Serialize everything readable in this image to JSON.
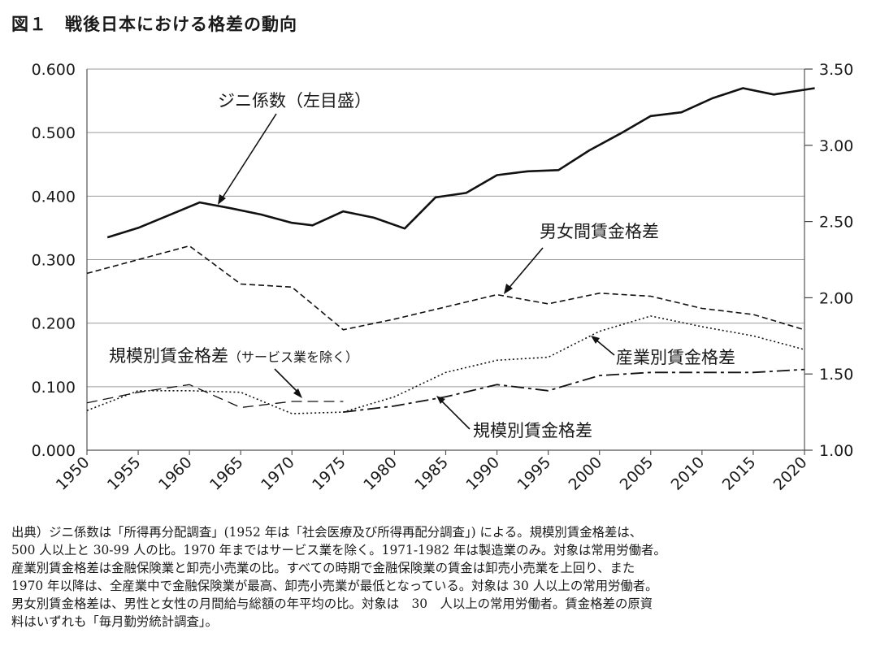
{
  "title": "図１　戦後日本における格差の動向",
  "chart_data": {
    "type": "line",
    "title": "図１　戦後日本における格差の動向",
    "x_ticks": [
      "1950",
      "1955",
      "1960",
      "1965",
      "1970",
      "1975",
      "1980",
      "1985",
      "1990",
      "1995",
      "2000",
      "2005",
      "2010",
      "2015",
      "2020"
    ],
    "y_left": {
      "range": [
        0,
        0.6
      ],
      "ticks": [
        "0.000",
        "0.100",
        "0.200",
        "0.300",
        "0.400",
        "0.500",
        "0.600"
      ]
    },
    "y_right": {
      "range": [
        1.0,
        3.5
      ],
      "ticks": [
        "1.00",
        "1.50",
        "2.00",
        "2.50",
        "3.00",
        "3.50"
      ]
    },
    "grid": "horizontal",
    "series": [
      {
        "name": "ジニ係数（左目盛）",
        "axis": "left",
        "style": "solid",
        "color": "#111111",
        "x": [
          1952,
          1955,
          1958,
          1961,
          1964,
          1967,
          1970,
          1972,
          1975,
          1978,
          1981,
          1984,
          1987,
          1990,
          1993,
          1996,
          1999,
          2002,
          2005,
          2008,
          2011,
          2014,
          2017,
          2021
        ],
        "y": [
          0.335,
          0.35,
          0.37,
          0.39,
          0.381,
          0.371,
          0.358,
          0.354,
          0.376,
          0.366,
          0.349,
          0.398,
          0.405,
          0.433,
          0.439,
          0.441,
          0.472,
          0.498,
          0.526,
          0.532,
          0.554,
          0.57,
          0.56,
          0.57
        ]
      },
      {
        "name": "男女間賃金格差",
        "axis": "right",
        "style": "dashed",
        "color": "#111111",
        "x": [
          1950,
          1955,
          1960,
          1965,
          1970,
          1975,
          1980,
          1985,
          1990,
          1995,
          2000,
          2005,
          2010,
          2015,
          2020
        ],
        "y": [
          2.16,
          2.25,
          2.34,
          2.09,
          2.07,
          1.79,
          1.86,
          1.94,
          2.02,
          1.96,
          2.03,
          2.01,
          1.93,
          1.89,
          1.79
        ]
      },
      {
        "name": "産業別賃金格差",
        "axis": "right",
        "style": "dotted",
        "color": "#111111",
        "x": [
          1950,
          1955,
          1960,
          1965,
          1970,
          1975,
          1980,
          1985,
          1990,
          1995,
          2000,
          2005,
          2010,
          2015,
          2020
        ],
        "y": [
          1.26,
          1.39,
          1.39,
          1.38,
          1.24,
          1.25,
          1.35,
          1.51,
          1.59,
          1.61,
          1.78,
          1.88,
          1.81,
          1.75,
          1.66
        ]
      },
      {
        "name": "規模別賃金格差（サービス業を除く）",
        "axis": "right",
        "style": "long-dash",
        "color": "#111111",
        "x": [
          1950,
          1955,
          1960,
          1965,
          1970,
          1975
        ],
        "y": [
          1.31,
          1.38,
          1.43,
          1.28,
          1.32,
          1.32
        ]
      },
      {
        "name": "規模別賃金格差",
        "axis": "right",
        "style": "dash-dot",
        "color": "#111111",
        "x": [
          1975,
          1980,
          1985,
          1990,
          1995,
          2000,
          2005,
          2010,
          2015,
          2020
        ],
        "y": [
          1.25,
          1.29,
          1.35,
          1.43,
          1.39,
          1.49,
          1.51,
          1.51,
          1.51,
          1.53
        ]
      }
    ],
    "annotations": {
      "gini": "ジニ係数（左目盛）",
      "gender": "男女間賃金格差",
      "industry": "産業別賃金格差",
      "size_excl_service": "規模別賃金格差",
      "size_excl_service_small": "（サービス業を除く）",
      "size": "規模別賃金格差"
    }
  },
  "notes": [
    "出典）ジニ係数は「所得再分配調査」(1952 年は「社会医療及び所得再配分調査」) による。規模別賃金格差は、",
    "500 人以上と 30-99 人の比。1970 年まではサービス業を除く。1971-1982 年は製造業のみ。対象は常用労働者。",
    "産業別賃金格差は金融保険業と卸売小売業の比。すべての時期で金融保険業の賃金は卸売小売業を上回り、また",
    "1970 年以降は、全産業中で金融保険業が最高、卸売小売業が最低となっている。対象は 30 人以上の常用労働者。",
    "男女別賃金格差は、男性と女性の月間給与総額の年平均の比。対象は　30　人以上の常用労働者。賃金格差の原資",
    "料はいずれも「毎月勤労統計調査」。"
  ]
}
